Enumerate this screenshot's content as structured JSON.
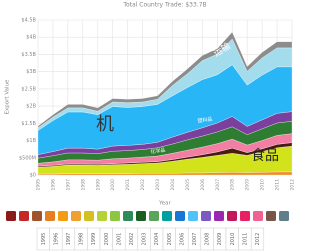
{
  "chart_data": {
    "type": "stacked-area",
    "title": "Total Country Trade: $33.7B",
    "xlabel": "Year",
    "ylabel": "Export Value",
    "x": [
      1995,
      1996,
      1997,
      1998,
      1999,
      2000,
      2001,
      2002,
      2003,
      2004,
      2005,
      2006,
      2007,
      2008,
      2009,
      2010,
      2011,
      2012
    ],
    "xlim": [
      1995,
      2012
    ],
    "ylim": [
      0,
      4500000000
    ],
    "yticks": [
      {
        "value": 0,
        "label": "$0"
      },
      {
        "value": 500000000,
        "label": "$500M"
      },
      {
        "value": 1000000000,
        "label": "$1B"
      },
      {
        "value": 1500000000,
        "label": "$1.5B"
      },
      {
        "value": 2000000000,
        "label": "$2B"
      },
      {
        "value": 2500000000,
        "label": "$2.5B"
      },
      {
        "value": 3000000000,
        "label": "$3B"
      },
      {
        "value": 3500000000,
        "label": "$3.5B"
      },
      {
        "value": 4000000000,
        "label": "$4B"
      },
      {
        "value": 4500000000,
        "label": "$4.5B"
      }
    ],
    "grid": true,
    "series": [
      {
        "color": "#f08a24",
        "values": [
          30000000.0,
          30000000.0,
          40000000.0,
          40000000.0,
          40000000.0,
          40000000.0,
          40000000.0,
          50000000.0,
          50000000.0,
          50000000.0,
          60000000.0,
          60000000.0,
          70000000.0,
          80000000.0,
          70000000.0,
          80000000.0,
          90000000.0,
          90000000.0
        ]
      },
      {
        "color": "#d2e21b",
        "values": [
          200000000.0,
          220000000.0,
          250000000.0,
          250000000.0,
          240000000.0,
          260000000.0,
          270000000.0,
          280000000.0,
          300000000.0,
          350000000.0,
          400000000.0,
          450000000.0,
          500000000.0,
          550000000.0,
          500000000.0,
          600000000.0,
          700000000.0,
          750000000.0
        ]
      },
      {
        "color": "#4a1c10",
        "values": [
          30000000.0,
          30000000.0,
          30000000.0,
          30000000.0,
          30000000.0,
          30000000.0,
          40000000.0,
          40000000.0,
          40000000.0,
          50000000.0,
          60000000.0,
          80000000.0,
          100000000.0,
          150000000.0,
          80000000.0,
          80000000.0,
          100000000.0,
          100000000.0
        ]
      },
      {
        "color": "#f27ea4",
        "values": [
          80000000.0,
          100000000.0,
          120000000.0,
          120000000.0,
          120000000.0,
          140000000.0,
          140000000.0,
          150000000.0,
          160000000.0,
          180000000.0,
          200000000.0,
          220000000.0,
          240000000.0,
          260000000.0,
          220000000.0,
          240000000.0,
          260000000.0,
          260000000.0
        ]
      },
      {
        "color": "#2e7d32",
        "values": [
          150000000.0,
          180000000.0,
          200000000.0,
          200000000.0,
          190000000.0,
          220000000.0,
          220000000.0,
          220000000.0,
          240000000.0,
          270000000.0,
          300000000.0,
          320000000.0,
          340000000.0,
          360000000.0,
          300000000.0,
          340000000.0,
          360000000.0,
          360000000.0
        ]
      },
      {
        "color": "#7b3f9e",
        "values": [
          100000000.0,
          120000000.0,
          140000000.0,
          140000000.0,
          130000000.0,
          150000000.0,
          150000000.0,
          150000000.0,
          160000000.0,
          200000000.0,
          220000000.0,
          240000000.0,
          260000000.0,
          300000000.0,
          240000000.0,
          260000000.0,
          280000000.0,
          280000000.0
        ]
      },
      {
        "color": "#29b6f6",
        "values": [
          700000000.0,
          900000000.0,
          1050000000.0,
          1050000000.0,
          1000000000.0,
          1150000000.0,
          1100000000.0,
          1100000000.0,
          1100000000.0,
          1200000000.0,
          1300000000.0,
          1400000000.0,
          1400000000.0,
          1500000000.0,
          1200000000.0,
          1300000000.0,
          1350000000.0,
          1300000000.0
        ]
      },
      {
        "color": "#a3dced",
        "values": [
          80000000.0,
          100000000.0,
          120000000.0,
          120000000.0,
          100000000.0,
          130000000.0,
          140000000.0,
          130000000.0,
          150000000.0,
          300000000.0,
          400000000.0,
          550000000.0,
          600000000.0,
          750000000.0,
          400000000.0,
          500000000.0,
          550000000.0,
          550000000.0
        ]
      },
      {
        "color": "#8c8c8c",
        "values": [
          50000000.0,
          70000000.0,
          100000000.0,
          100000000.0,
          100000000.0,
          100000000.0,
          100000000.0,
          100000000.0,
          100000000.0,
          120000000.0,
          140000000.0,
          150000000.0,
          160000000.0,
          200000000.0,
          140000000.0,
          160000000.0,
          180000000.0,
          180000000.0
        ]
      }
    ],
    "annotations": [
      "机",
      "运输",
      "食品",
      "塑料品",
      "化学品"
    ]
  }
}
